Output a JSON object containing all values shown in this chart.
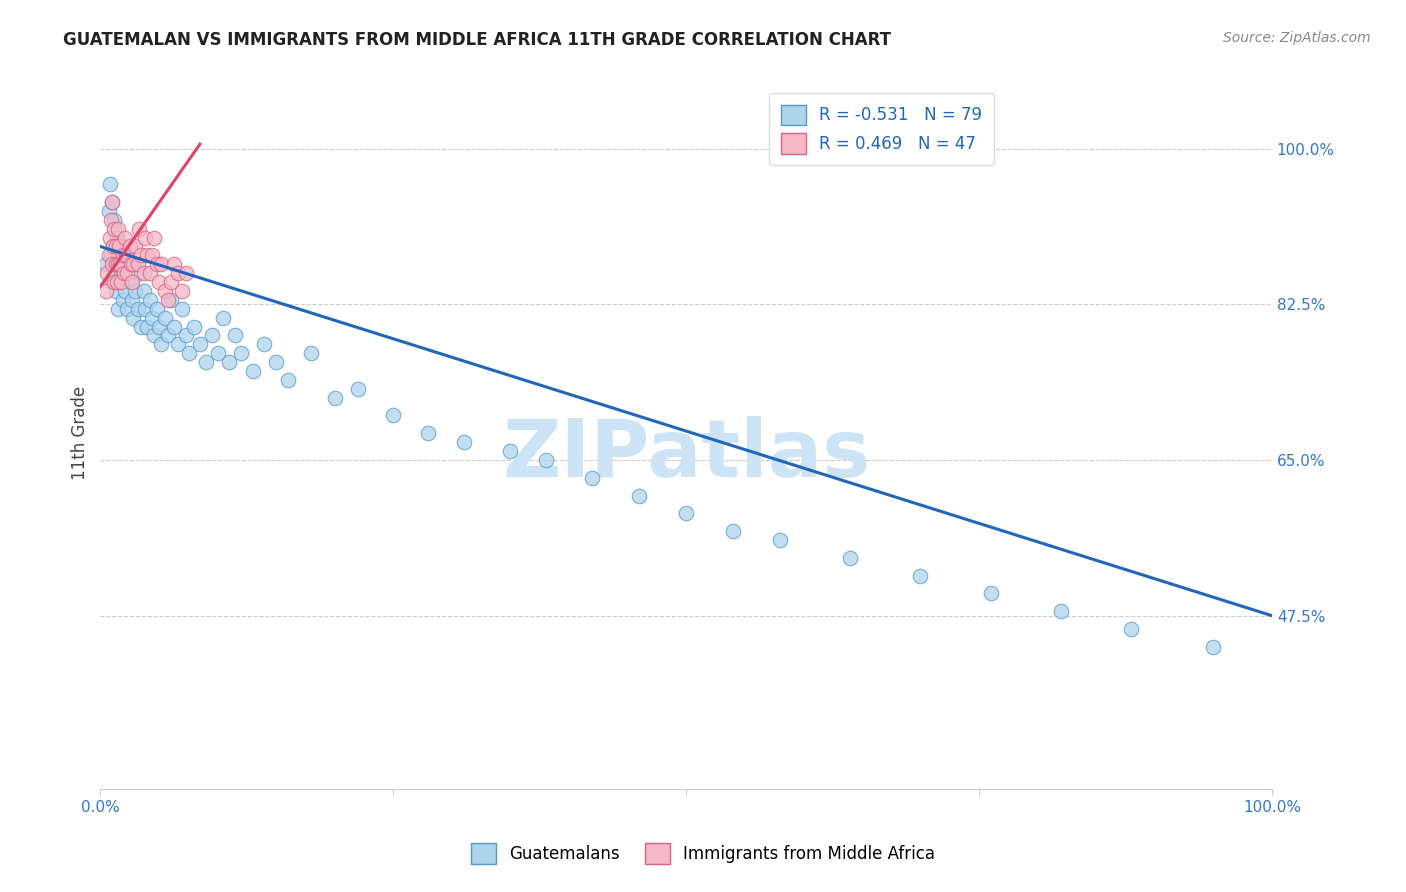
{
  "title": "GUATEMALAN VS IMMIGRANTS FROM MIDDLE AFRICA 11TH GRADE CORRELATION CHART",
  "source": "Source: ZipAtlas.com",
  "ylabel": "11th Grade",
  "xlim": [
    0.0,
    1.0
  ],
  "ylim": [
    0.28,
    1.08
  ],
  "yticks_right": [
    1.0,
    0.825,
    0.65,
    0.475
  ],
  "ytick_labels_right": [
    "100.0%",
    "82.5%",
    "65.0%",
    "47.5%"
  ],
  "r_blue": -0.531,
  "n_blue": 79,
  "r_pink": 0.469,
  "n_pink": 47,
  "blue_color": "#aed4ec",
  "pink_color": "#f4b8c8",
  "blue_edge_color": "#5599cc",
  "pink_edge_color": "#d96080",
  "blue_line_color": "#2266bb",
  "pink_line_color": "#dd4466",
  "watermark": "ZIPatlas",
  "watermark_color": "#cce4f5",
  "blue_scatter_x": [
    0.005,
    0.007,
    0.008,
    0.009,
    0.01,
    0.01,
    0.011,
    0.012,
    0.012,
    0.013,
    0.013,
    0.014,
    0.015,
    0.015,
    0.016,
    0.017,
    0.018,
    0.019,
    0.02,
    0.021,
    0.022,
    0.023,
    0.025,
    0.026,
    0.027,
    0.028,
    0.03,
    0.032,
    0.033,
    0.035,
    0.037,
    0.038,
    0.04,
    0.042,
    0.044,
    0.046,
    0.048,
    0.05,
    0.052,
    0.055,
    0.058,
    0.06,
    0.063,
    0.066,
    0.07,
    0.073,
    0.076,
    0.08,
    0.085,
    0.09,
    0.095,
    0.1,
    0.105,
    0.11,
    0.115,
    0.12,
    0.13,
    0.14,
    0.15,
    0.16,
    0.18,
    0.2,
    0.22,
    0.25,
    0.28,
    0.31,
    0.35,
    0.38,
    0.42,
    0.46,
    0.5,
    0.54,
    0.58,
    0.64,
    0.7,
    0.76,
    0.82,
    0.88,
    0.95
  ],
  "blue_scatter_y": [
    0.87,
    0.93,
    0.96,
    0.88,
    0.94,
    0.85,
    0.89,
    0.87,
    0.92,
    0.86,
    0.84,
    0.9,
    0.88,
    0.82,
    0.87,
    0.85,
    0.89,
    0.83,
    0.86,
    0.84,
    0.88,
    0.82,
    0.87,
    0.85,
    0.83,
    0.81,
    0.84,
    0.82,
    0.86,
    0.8,
    0.84,
    0.82,
    0.8,
    0.83,
    0.81,
    0.79,
    0.82,
    0.8,
    0.78,
    0.81,
    0.79,
    0.83,
    0.8,
    0.78,
    0.82,
    0.79,
    0.77,
    0.8,
    0.78,
    0.76,
    0.79,
    0.77,
    0.81,
    0.76,
    0.79,
    0.77,
    0.75,
    0.78,
    0.76,
    0.74,
    0.77,
    0.72,
    0.73,
    0.7,
    0.68,
    0.67,
    0.66,
    0.65,
    0.63,
    0.61,
    0.59,
    0.57,
    0.56,
    0.54,
    0.52,
    0.5,
    0.48,
    0.46,
    0.44
  ],
  "pink_scatter_x": [
    0.005,
    0.006,
    0.007,
    0.008,
    0.009,
    0.01,
    0.01,
    0.011,
    0.012,
    0.012,
    0.013,
    0.013,
    0.014,
    0.015,
    0.015,
    0.016,
    0.017,
    0.018,
    0.019,
    0.02,
    0.021,
    0.022,
    0.023,
    0.025,
    0.026,
    0.027,
    0.028,
    0.03,
    0.032,
    0.033,
    0.035,
    0.037,
    0.038,
    0.04,
    0.042,
    0.044,
    0.046,
    0.048,
    0.05,
    0.052,
    0.055,
    0.058,
    0.06,
    0.063,
    0.066,
    0.07,
    0.073
  ],
  "pink_scatter_y": [
    0.84,
    0.86,
    0.88,
    0.9,
    0.92,
    0.94,
    0.87,
    0.89,
    0.91,
    0.85,
    0.87,
    0.89,
    0.85,
    0.87,
    0.91,
    0.89,
    0.87,
    0.85,
    0.88,
    0.86,
    0.9,
    0.88,
    0.86,
    0.89,
    0.87,
    0.85,
    0.87,
    0.89,
    0.87,
    0.91,
    0.88,
    0.86,
    0.9,
    0.88,
    0.86,
    0.88,
    0.9,
    0.87,
    0.85,
    0.87,
    0.84,
    0.83,
    0.85,
    0.87,
    0.86,
    0.84,
    0.86
  ],
  "blue_line_x": [
    0.0,
    1.0
  ],
  "blue_line_y": [
    0.89,
    0.475
  ],
  "pink_line_x": [
    0.0,
    0.085
  ],
  "pink_line_y": [
    0.845,
    1.005
  ]
}
